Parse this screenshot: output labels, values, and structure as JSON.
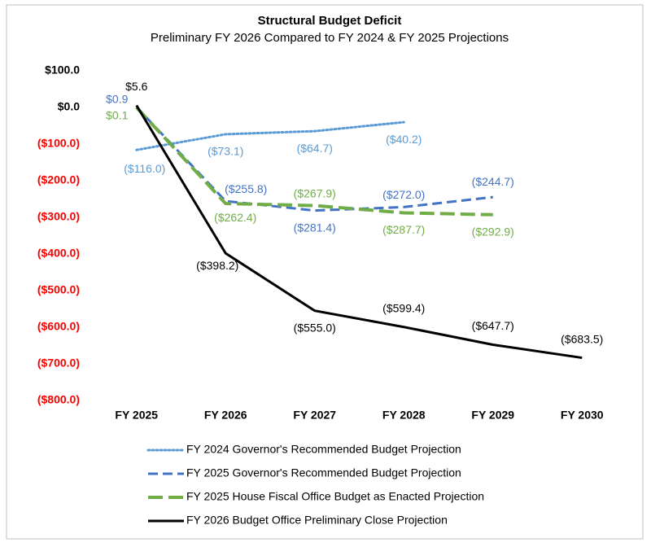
{
  "chart_data": {
    "type": "line",
    "title": "Structural Budget Deficit",
    "subtitle": "Preliminary FY 2026 Compared to FY 2024 & FY 2025 Projections",
    "categories": [
      "FY 2025",
      "FY 2026",
      "FY 2027",
      "FY 2028",
      "FY 2029",
      "FY 2030"
    ],
    "ylim": [
      -800,
      100
    ],
    "yticks": [
      {
        "value": 100,
        "label": "$100.0"
      },
      {
        "value": 0,
        "label": "$0.0"
      },
      {
        "value": -100,
        "label": "($100.0)"
      },
      {
        "value": -200,
        "label": "($200.0)"
      },
      {
        "value": -300,
        "label": "($300.0)"
      },
      {
        "value": -400,
        "label": "($400.0)"
      },
      {
        "value": -500,
        "label": "($500.0)"
      },
      {
        "value": -600,
        "label": "($600.0)"
      },
      {
        "value": -700,
        "label": "($700.0)"
      },
      {
        "value": -800,
        "label": "($800.0)"
      }
    ],
    "negative_tick_color": "#ff0000",
    "grid": false,
    "legend": "bottom",
    "series": [
      {
        "name": "FY 2024 Governor's Recommended Budget Projection",
        "color": "#5b9bd5",
        "dash": "dotted",
        "values": [
          -116.0,
          -73.1,
          -64.7,
          -40.2,
          null,
          null
        ],
        "value_labels": [
          "($116.0)",
          "($73.1)",
          "($64.7)",
          "($40.2)",
          null,
          null
        ]
      },
      {
        "name": "FY 2025 Governor's Recommended Budget Projection",
        "color": "#4472c4",
        "dash": "dashed",
        "values": [
          0.9,
          -255.8,
          -281.4,
          -272.0,
          -244.7,
          null
        ],
        "value_labels": [
          "$0.9",
          "($255.8)",
          "($281.4)",
          "($272.0)",
          "($244.7)",
          null
        ]
      },
      {
        "name": "FY 2025 House Fiscal Office Budget as Enacted Projection",
        "color": "#70ad47",
        "dash": "long-dashed",
        "values": [
          0.1,
          -262.4,
          -267.9,
          -287.7,
          -292.9,
          null
        ],
        "value_labels": [
          "$0.1",
          "($262.4)",
          "($267.9)",
          "($287.7)",
          "($292.9)",
          null
        ]
      },
      {
        "name": "FY 2026 Budget Office Preliminary Close Projection",
        "color": "#000000",
        "dash": "solid",
        "values": [
          5.6,
          -398.2,
          -555.0,
          -599.4,
          -647.7,
          -683.5
        ],
        "value_labels": [
          "$5.6",
          "($398.2)",
          "($555.0)",
          "($599.4)",
          "($647.7)",
          "($683.5)"
        ]
      }
    ]
  }
}
